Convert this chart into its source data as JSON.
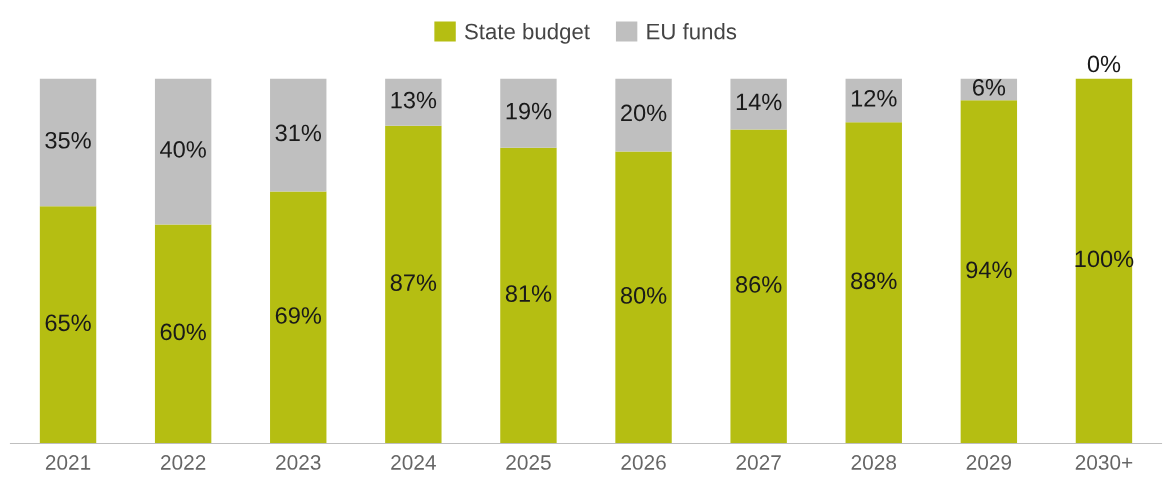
{
  "chart_data": {
    "type": "bar",
    "stacked": true,
    "categories": [
      "2021",
      "2022",
      "2023",
      "2024",
      "2025",
      "2026",
      "2027",
      "2028",
      "2029",
      "2030+"
    ],
    "series": [
      {
        "name": "State budget",
        "color": "#b5be12",
        "values": [
          65,
          60,
          69,
          87,
          81,
          80,
          86,
          88,
          94,
          100
        ],
        "value_labels": [
          "65%",
          "60%",
          "69%",
          "87%",
          "81%",
          "80%",
          "86%",
          "88%",
          "94%",
          "100%"
        ]
      },
      {
        "name": "EU funds",
        "color": "#bfbfbf",
        "values": [
          35,
          40,
          31,
          13,
          19,
          20,
          14,
          12,
          6,
          0
        ],
        "value_labels": [
          "35%",
          "40%",
          "31%",
          "13%",
          "19%",
          "20%",
          "14%",
          "12%",
          "6%",
          "0%"
        ]
      }
    ],
    "tick_labels": "x",
    "legend": "top"
  }
}
